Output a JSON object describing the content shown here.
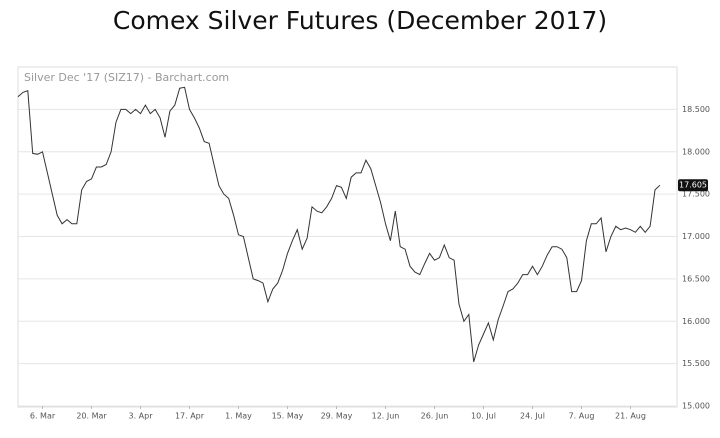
{
  "chart_data": {
    "type": "line",
    "title": "Comex Silver Futures (December 2017)",
    "subtitle": "Silver Dec '17 (SIZ17) - Barchart.com",
    "categories": [
      null,
      null,
      null,
      null,
      null,
      "6. Mar",
      null,
      null,
      null,
      null,
      null,
      null,
      null,
      null,
      null,
      "20. Mar",
      null,
      null,
      null,
      null,
      null,
      null,
      null,
      null,
      null,
      "3. Apr",
      null,
      null,
      null,
      null,
      null,
      null,
      null,
      null,
      null,
      "17. Apr",
      null,
      null,
      null,
      null,
      null,
      null,
      null,
      null,
      null,
      "1. May",
      null,
      null,
      null,
      null,
      null,
      null,
      null,
      null,
      null,
      "15. May",
      null,
      null,
      null,
      null,
      null,
      null,
      null,
      null,
      null,
      "29. May",
      null,
      null,
      null,
      null,
      null,
      null,
      null,
      null,
      null,
      "12. Jun",
      null,
      null,
      null,
      null,
      null,
      null,
      null,
      null,
      null,
      "26. Jun",
      null,
      null,
      null,
      null,
      null,
      null,
      null,
      null,
      null,
      "10. Jul",
      null,
      null,
      null,
      null,
      null,
      null,
      null,
      null,
      null,
      "24. Jul",
      null,
      null,
      null,
      null,
      null,
      null,
      null,
      null,
      null,
      "7. Aug",
      null,
      null,
      null,
      null,
      null,
      null,
      null,
      null,
      null,
      "21. Aug",
      null,
      null,
      null,
      null,
      null,
      null
    ],
    "series": [
      {
        "color": "#333333",
        "values": [
          18.65,
          18.7,
          18.72,
          17.98,
          17.97,
          18.0,
          17.75,
          17.5,
          17.25,
          17.15,
          17.2,
          17.15,
          17.15,
          17.55,
          17.65,
          17.68,
          17.82,
          17.82,
          17.85,
          18.0,
          18.35,
          18.5,
          18.5,
          18.45,
          18.5,
          18.45,
          18.55,
          18.45,
          18.5,
          18.4,
          18.17,
          18.48,
          18.55,
          18.75,
          18.76,
          18.5,
          18.4,
          18.28,
          18.12,
          18.1,
          17.85,
          17.6,
          17.5,
          17.45,
          17.25,
          17.02,
          17.0,
          16.75,
          16.5,
          16.48,
          16.45,
          16.23,
          16.38,
          16.45,
          16.6,
          16.8,
          16.95,
          17.08,
          16.85,
          16.98,
          17.35,
          17.3,
          17.28,
          17.35,
          17.45,
          17.6,
          17.58,
          17.45,
          17.7,
          17.75,
          17.75,
          17.9,
          17.8,
          17.6,
          17.4,
          17.15,
          16.95,
          17.3,
          16.88,
          16.85,
          16.65,
          16.58,
          16.55,
          16.68,
          16.8,
          16.72,
          16.75,
          16.9,
          16.75,
          16.72,
          16.2,
          16.0,
          16.08,
          15.52,
          15.72,
          15.85,
          15.98,
          15.78,
          16.02,
          16.18,
          16.35,
          16.38,
          16.45,
          16.55,
          16.55,
          16.65,
          16.55,
          16.65,
          16.78,
          16.88,
          16.88,
          16.85,
          16.75,
          16.35,
          16.35,
          16.48,
          16.95,
          17.15,
          17.15,
          17.22,
          16.82,
          17.0,
          17.12,
          17.08,
          17.1,
          17.08,
          17.05,
          17.12,
          17.05,
          17.12,
          17.55,
          17.605
        ]
      }
    ],
    "ylim": [
      15,
      19
    ],
    "yticks": [
      {
        "value": 15,
        "label": "15.000"
      },
      {
        "value": 15.5,
        "label": "15.500"
      },
      {
        "value": 16,
        "label": "16.000"
      },
      {
        "value": 16.5,
        "label": "16.500"
      },
      {
        "value": 17,
        "label": "17.000"
      },
      {
        "value": 17.5,
        "label": "17.500"
      },
      {
        "value": 18,
        "label": "18.000"
      },
      {
        "value": 18.5,
        "label": "18.500"
      }
    ],
    "grid": true
  }
}
